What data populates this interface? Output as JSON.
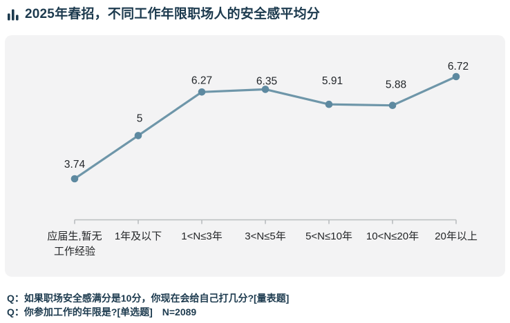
{
  "header": {
    "title": "2025年春招，不同工作年限职场人的安全感平均分",
    "icon": "bar-chart-icon",
    "title_color": "#1c3a4e"
  },
  "chart_data": {
    "type": "line",
    "title": "2025年春招，不同工作年限职场人的安全感平均分",
    "categories": [
      "应届生,暂无\n工作经验",
      "1年及以下",
      "1<N≤3年",
      "3<N≤5年",
      "5<N≤10年",
      "10<N≤20年",
      "20年以上"
    ],
    "values": [
      3.74,
      5,
      6.27,
      6.35,
      5.91,
      5.88,
      6.72
    ],
    "value_labels": [
      "3.74",
      "5",
      "6.27",
      "6.35",
      "5.91",
      "5.88",
      "6.72"
    ],
    "xlabel": "",
    "ylabel": "",
    "ylim": [
      2.5,
      7.5
    ],
    "grid": false,
    "legend": false,
    "colors": {
      "line": "#6e96a9",
      "point": "#5d89a0",
      "axis": "#babdbf",
      "value_label": "#212529",
      "category_label": "#232527",
      "panel_bg": "#f3f3f4"
    }
  },
  "footnotes": {
    "q1": "Q：如果职场安全感满分是10分，你现在会给自己打几分?[量表题]",
    "q2": "Q：你参加工作的年限是?[单选题]　N=2089"
  }
}
